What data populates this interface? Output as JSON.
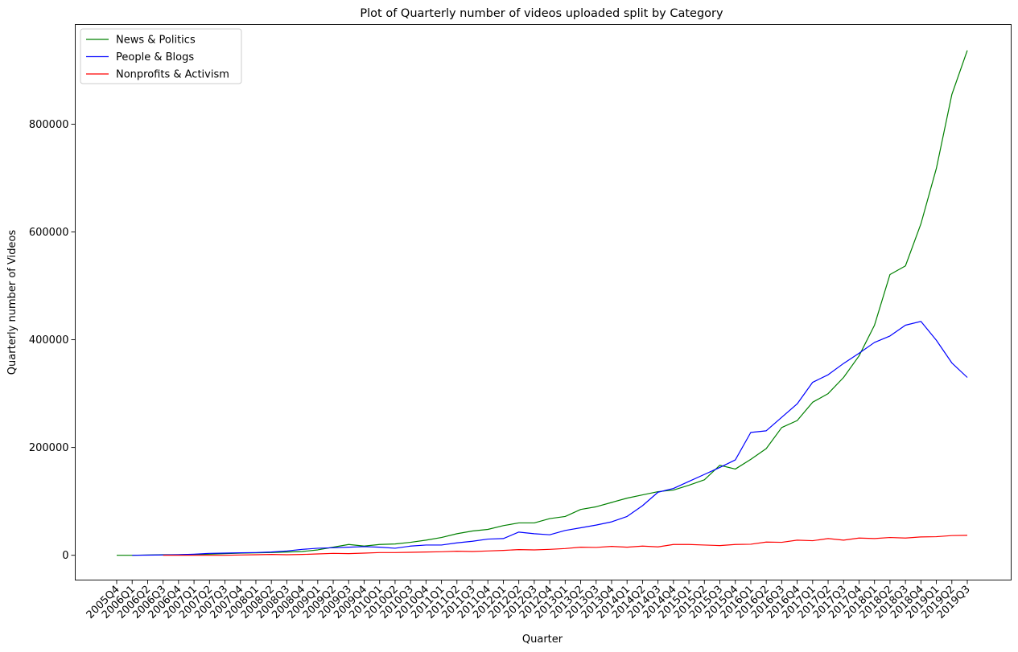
{
  "chart_data": {
    "type": "line",
    "title": "Plot of Quarterly number of videos uploaded split by Category",
    "xlabel": "Quarter",
    "ylabel": "Quarterly number of Videos",
    "ylim": [
      -46000,
      985000
    ],
    "yticks": [
      0,
      200000,
      400000,
      600000,
      800000
    ],
    "grid": false,
    "legend_position": "top-left",
    "categories": [
      "2005Q4",
      "2006Q1",
      "2006Q2",
      "2006Q3",
      "2006Q4",
      "2007Q1",
      "2007Q2",
      "2007Q3",
      "2007Q4",
      "2008Q1",
      "2008Q2",
      "2008Q3",
      "2008Q4",
      "2009Q1",
      "2009Q2",
      "2009Q3",
      "2009Q4",
      "2010Q1",
      "2010Q2",
      "2010Q3",
      "2010Q4",
      "2011Q1",
      "2011Q2",
      "2011Q3",
      "2011Q4",
      "2012Q1",
      "2012Q2",
      "2012Q3",
      "2012Q4",
      "2013Q1",
      "2013Q2",
      "2013Q3",
      "2013Q4",
      "2014Q1",
      "2014Q2",
      "2014Q3",
      "2014Q4",
      "2015Q1",
      "2015Q2",
      "2015Q3",
      "2015Q4",
      "2016Q1",
      "2016Q2",
      "2016Q3",
      "2016Q4",
      "2017Q1",
      "2017Q2",
      "2017Q3",
      "2017Q4",
      "2018Q1",
      "2018Q2",
      "2018Q3",
      "2018Q4",
      "2019Q1",
      "2019Q2",
      "2019Q3"
    ],
    "series": [
      {
        "name": "News & Politics",
        "color": "#008000",
        "values": [
          0,
          0,
          500,
          1000,
          1000,
          1500,
          2000,
          3000,
          4000,
          4500,
          5000,
          6000,
          7000,
          10000,
          15000,
          20000,
          17000,
          20000,
          21000,
          24000,
          28000,
          33000,
          40000,
          45000,
          48000,
          55000,
          60000,
          60000,
          68000,
          72000,
          85000,
          90000,
          98000,
          106000,
          112000,
          118000,
          121000,
          130000,
          140000,
          167000,
          160000,
          178000,
          198000,
          237000,
          250000,
          284000,
          300000,
          330000,
          370000,
          427000,
          521000,
          537000,
          615000,
          718000,
          855000,
          937000
        ]
      },
      {
        "name": "People & Blogs",
        "color": "#0000ff",
        "values": [
          null,
          0,
          300,
          600,
          1000,
          2000,
          3500,
          4000,
          4500,
          5000,
          6000,
          8000,
          11000,
          13000,
          14000,
          15000,
          16000,
          15000,
          13000,
          17000,
          19000,
          19000,
          23000,
          26000,
          30000,
          31000,
          43000,
          40000,
          38000,
          46000,
          51000,
          56000,
          62000,
          72000,
          92000,
          117000,
          124000,
          137000,
          150000,
          163000,
          177000,
          228000,
          231000,
          256000,
          281000,
          321000,
          335000,
          356000,
          375000,
          395000,
          407000,
          427000,
          434000,
          399000,
          357000,
          330000
        ]
      },
      {
        "name": "Nonprofits & Activism",
        "color": "#ff0000",
        "values": [
          null,
          null,
          null,
          0,
          0,
          0,
          0,
          0,
          500,
          1000,
          1500,
          1000,
          1500,
          2500,
          3500,
          3000,
          4000,
          5000,
          5000,
          5500,
          6000,
          6500,
          7500,
          7000,
          8000,
          9000,
          10500,
          10000,
          11000,
          12500,
          15000,
          14500,
          16500,
          15000,
          17000,
          15500,
          20000,
          20000,
          19000,
          18000,
          20000,
          20500,
          24500,
          24000,
          28000,
          27000,
          31000,
          28000,
          32000,
          31000,
          33000,
          32000,
          34000,
          34500,
          36500,
          37000
        ]
      }
    ]
  }
}
